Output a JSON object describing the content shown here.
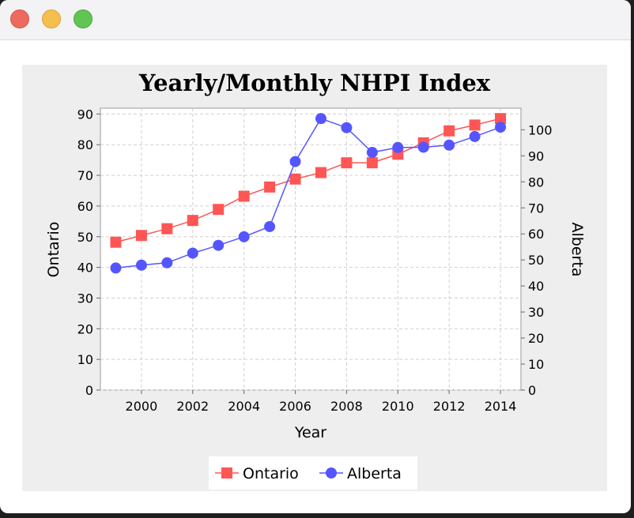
{
  "window": {
    "controls": [
      "close",
      "minimize",
      "zoom"
    ]
  },
  "chart_data": {
    "type": "line",
    "title": "Yearly/Monthly NHPI Index",
    "xlabel": "Year",
    "ylabel_left": "Ontario",
    "ylabel_right": "Alberta",
    "x": [
      1999,
      2000,
      2001,
      2002,
      2003,
      2004,
      2005,
      2006,
      2007,
      2008,
      2009,
      2010,
      2011,
      2012,
      2013,
      2014
    ],
    "xlim": [
      1998.4,
      2014.8
    ],
    "x_ticks": [
      2000,
      2002,
      2004,
      2006,
      2008,
      2010,
      2012,
      2014
    ],
    "y_left": {
      "lim": [
        0,
        91.9
      ],
      "ticks": [
        0,
        10,
        20,
        30,
        40,
        50,
        60,
        70,
        80,
        90
      ]
    },
    "y_right": {
      "lim": [
        0,
        108.3
      ],
      "ticks": [
        0,
        10,
        20,
        30,
        40,
        50,
        60,
        70,
        80,
        90,
        100
      ]
    },
    "grid": true,
    "legend": "bottom-center",
    "series": [
      {
        "name": "Ontario",
        "axis": "left",
        "marker": "square",
        "color": "#ff5555",
        "values": [
          48.2,
          50.4,
          52.6,
          55.3,
          58.9,
          63.2,
          66.2,
          68.8,
          70.9,
          74.1,
          74.1,
          76.9,
          80.6,
          84.5,
          86.4,
          88.5
        ]
      },
      {
        "name": "Alberta",
        "axis": "right",
        "marker": "circle",
        "color": "#5555ff",
        "values": [
          46.9,
          48.0,
          48.9,
          52.6,
          55.6,
          58.9,
          62.8,
          87.8,
          104.3,
          100.8,
          91.3,
          93.2,
          93.3,
          94.1,
          97.4,
          101.0
        ]
      }
    ]
  }
}
